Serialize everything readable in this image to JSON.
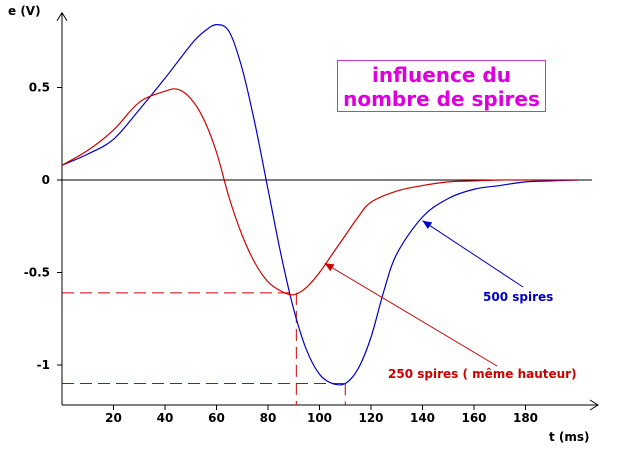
{
  "chart_data": {
    "type": "line",
    "title_lines": [
      "influence du",
      "nombre de spires"
    ],
    "xlabel": "t (ms)",
    "ylabel": "e (V)",
    "xlim": [
      0,
      200
    ],
    "ylim": [
      -1.2,
      0.85
    ],
    "x_ticks": [
      20,
      40,
      60,
      80,
      100,
      120,
      140,
      160,
      180
    ],
    "y_ticks": [
      {
        "value": 0.5,
        "label": "0.5"
      },
      {
        "value": 0,
        "label": "0"
      },
      {
        "value": -0.5,
        "label": "-0.5"
      },
      {
        "value": -1,
        "label": "-1"
      }
    ],
    "grid": false,
    "series": [
      {
        "name": "500 spires",
        "color": "#0000c8",
        "x": [
          0,
          10,
          20,
          30,
          40,
          50,
          55,
          60,
          65,
          70,
          75,
          80,
          85,
          90,
          95,
          100,
          105,
          110,
          115,
          120,
          125,
          130,
          140,
          150,
          160,
          170,
          180,
          190,
          200
        ],
        "y": [
          0.08,
          0.14,
          0.22,
          0.38,
          0.55,
          0.73,
          0.8,
          0.84,
          0.8,
          0.6,
          0.3,
          -0.05,
          -0.4,
          -0.7,
          -0.92,
          -1.05,
          -1.1,
          -1.1,
          -1.02,
          -0.85,
          -0.6,
          -0.4,
          -0.2,
          -0.1,
          -0.05,
          -0.03,
          -0.01,
          -0.005,
          0
        ]
      },
      {
        "name": "250 spires ( même hauteur)",
        "color": "#cc0000",
        "x": [
          0,
          10,
          20,
          30,
          40,
          45,
          50,
          55,
          60,
          65,
          70,
          75,
          80,
          85,
          90,
          95,
          100,
          105,
          110,
          115,
          120,
          130,
          140,
          150,
          160,
          170,
          180,
          190,
          200
        ],
        "y": [
          0.08,
          0.16,
          0.27,
          0.42,
          0.48,
          0.49,
          0.44,
          0.33,
          0.15,
          -0.1,
          -0.3,
          -0.45,
          -0.55,
          -0.6,
          -0.62,
          -0.58,
          -0.5,
          -0.4,
          -0.3,
          -0.2,
          -0.12,
          -0.06,
          -0.03,
          -0.01,
          -0.005,
          0,
          0,
          0,
          0
        ]
      }
    ],
    "reference_lines": [
      {
        "y": -0.61,
        "x": 91,
        "color": "#cc0000"
      },
      {
        "y": -1.1,
        "x": 110,
        "color": "#cc0000"
      }
    ],
    "annotations": [
      {
        "text": "500 spires",
        "color": "#0000c8",
        "arrow_to": [
          140,
          -0.22
        ]
      },
      {
        "text": "250 spires ( même hauteur)",
        "color": "#cc0000",
        "arrow_to": [
          102,
          -0.45
        ]
      }
    ]
  }
}
